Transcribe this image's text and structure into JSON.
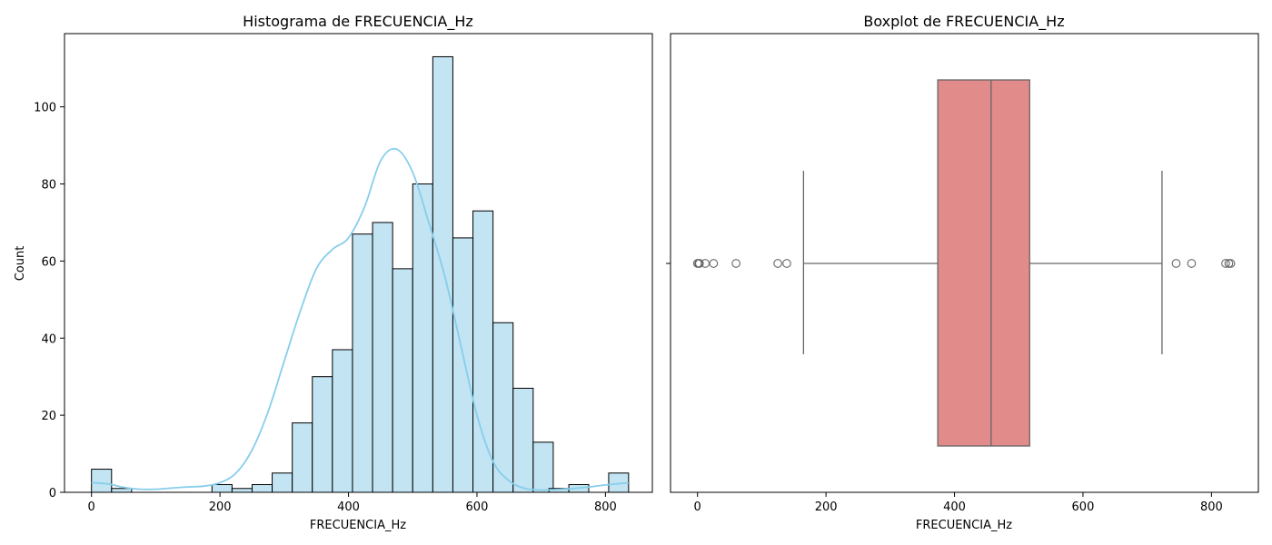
{
  "chart_data": [
    {
      "type": "bar",
      "title": "Histograma de FRECUENCIA_Hz",
      "xlabel": "FRECUENCIA_Hz",
      "ylabel": "Count",
      "xlim": [
        -42,
        873
      ],
      "ylim": [
        0,
        119
      ],
      "x_ticks": [
        0,
        200,
        400,
        600,
        800
      ],
      "y_ticks": [
        0,
        20,
        40,
        60,
        80,
        100
      ],
      "bin_start": 0,
      "bin_width": 31.25,
      "values": [
        6,
        1,
        0,
        0,
        0,
        0,
        2,
        1,
        2,
        5,
        18,
        30,
        37,
        67,
        70,
        58,
        80,
        113,
        66,
        73,
        44,
        27,
        13,
        0,
        0,
        0,
        0,
        0,
        0,
        0,
        0
      ],
      "overlay_bars": [
        {
          "x_start": 712,
          "x_end": 743,
          "value": 1
        },
        {
          "x_start": 743,
          "x_end": 774,
          "value": 2
        },
        {
          "x_start": 805,
          "x_end": 836,
          "value": 5
        }
      ],
      "kde": {
        "x": [
          0,
          25,
          50,
          75,
          100,
          125,
          150,
          175,
          200,
          225,
          250,
          275,
          300,
          325,
          350,
          375,
          400,
          425,
          450,
          475,
          500,
          525,
          550,
          575,
          600,
          625,
          650,
          675,
          700,
          725,
          750,
          775,
          800,
          825,
          836
        ],
        "y": [
          2.5,
          2.2,
          1.3,
          0.8,
          0.8,
          1.1,
          1.4,
          1.6,
          2.5,
          5,
          11,
          21,
          34,
          47,
          58,
          63,
          66,
          74,
          86,
          89,
          83,
          70,
          56,
          38,
          20,
          8,
          3,
          1,
          0.6,
          0.7,
          1.0,
          1.4,
          1.9,
          2.3,
          2.4
        ]
      },
      "colors": {
        "bar_fill": "#c2e4f3",
        "bar_edge": "#000000",
        "kde_line": "#87ceeb"
      }
    },
    {
      "type": "boxplot",
      "title": "Boxplot de FRECUENCIA_Hz",
      "xlabel": "FRECUENCIA_Hz",
      "xlim": [
        -42,
        873
      ],
      "x_ticks": [
        0,
        200,
        400,
        600,
        800
      ],
      "q1": 374,
      "median": 457,
      "q3": 517,
      "whisker_low": 165,
      "whisker_high": 723,
      "outliers": [
        0,
        2,
        3,
        12,
        25,
        60,
        125,
        139,
        745,
        769,
        822,
        827,
        830
      ],
      "colors": {
        "box_fill": "#e28b8b",
        "lines": "#666666"
      }
    }
  ]
}
